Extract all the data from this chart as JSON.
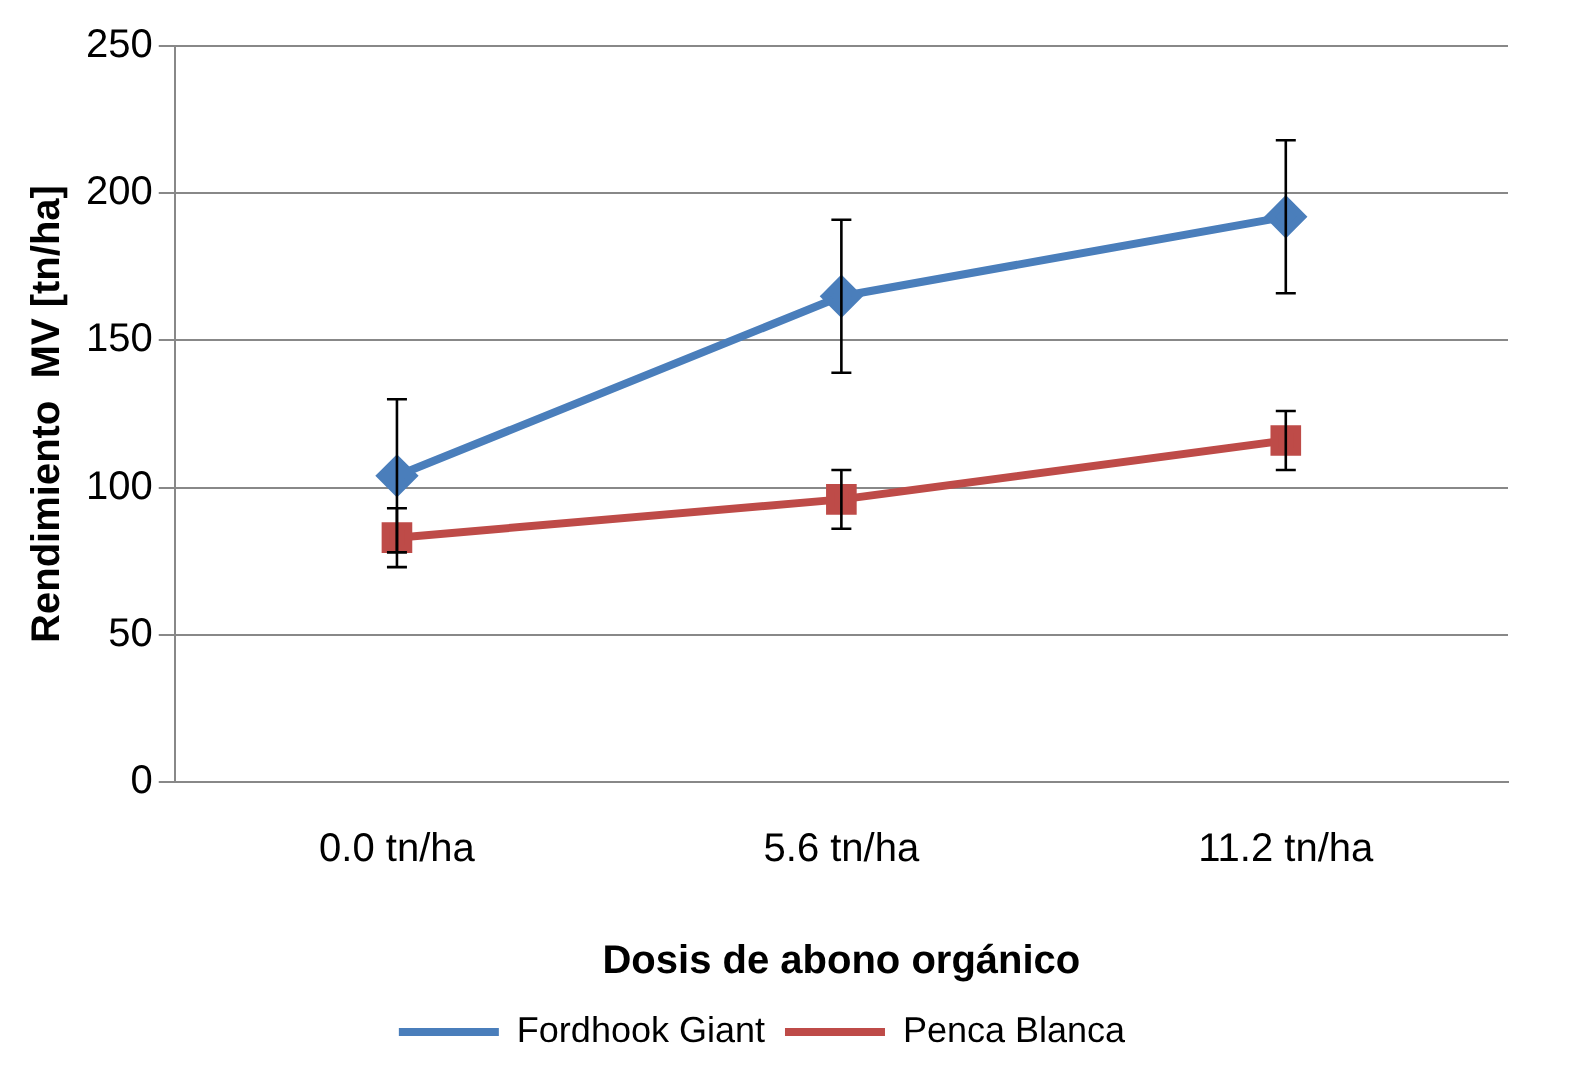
{
  "chart_data": {
    "type": "line",
    "xlabel": "Dosis de abono orgánico",
    "ylabel": "Rendimiento  MV [tn/ha]",
    "categories": [
      "0.0 tn/ha",
      "5.6 tn/ha",
      "11.2 tn/ha"
    ],
    "series": [
      {
        "name": "Fordhook Giant",
        "color": "#4a7ebb",
        "values": [
          104,
          165,
          192
        ],
        "errors": [
          26,
          26,
          26
        ],
        "marker": "diamond"
      },
      {
        "name": "Penca Blanca",
        "color": "#be4b48",
        "values": [
          83,
          96,
          116
        ],
        "errors": [
          10,
          10,
          10
        ],
        "marker": "square"
      }
    ],
    "ylim": [
      0,
      250
    ],
    "yticks": [
      0,
      50,
      100,
      150,
      200,
      250
    ],
    "grid": "y",
    "legend": "bottom",
    "line_style": "solid"
  }
}
